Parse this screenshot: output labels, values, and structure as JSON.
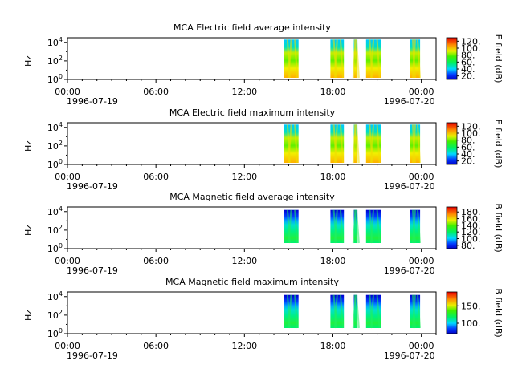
{
  "time_ticks": [
    "00:00",
    "06:00",
    "12:00",
    "18:00",
    "00:00"
  ],
  "chart_data": [
    {
      "type": "heatmap",
      "title": "MCA  Electric field average intensity",
      "ylabel": "Hz",
      "ytick_labels": [
        "10^0",
        "10^2",
        "10^4"
      ],
      "ylim": [
        1,
        31623
      ],
      "yscale": "log",
      "x_start": "1996-07-19 00:00",
      "x_end": "1996-07-20 01:00",
      "date_labels": {
        "start": "1996-07-19",
        "end": "1996-07-20"
      },
      "colorbar": {
        "label": "E field (dB)",
        "tick_labels": [
          "20.",
          "40.",
          "60.",
          "80.",
          "100.",
          "120."
        ],
        "ticks": [
          20,
          40,
          60,
          80,
          100,
          120
        ],
        "range": [
          10,
          130
        ]
      },
      "data_segments": [
        [
          "14:40",
          "15:40"
        ],
        [
          "17:50",
          "18:45"
        ],
        [
          "19:25",
          "19:40"
        ],
        [
          "20:15",
          "21:15"
        ],
        [
          "23:15",
          "23:55"
        ]
      ]
    },
    {
      "type": "heatmap",
      "title": "MCA  Electric field maximum intensity",
      "ylabel": "Hz",
      "ytick_labels": [
        "10^0",
        "10^2",
        "10^4"
      ],
      "ylim": [
        1,
        31623
      ],
      "yscale": "log",
      "x_start": "1996-07-19 00:00",
      "x_end": "1996-07-20 01:00",
      "date_labels": {
        "start": "1996-07-19",
        "end": "1996-07-20"
      },
      "colorbar": {
        "label": "E field (dB)",
        "tick_labels": [
          "20.",
          "40.",
          "60.",
          "80.",
          "100.",
          "120."
        ],
        "ticks": [
          20,
          40,
          60,
          80,
          100,
          120
        ],
        "range": [
          10,
          130
        ]
      },
      "data_segments": [
        [
          "14:40",
          "15:40"
        ],
        [
          "17:50",
          "18:45"
        ],
        [
          "19:25",
          "19:40"
        ],
        [
          "20:15",
          "21:15"
        ],
        [
          "23:15",
          "23:55"
        ]
      ]
    },
    {
      "type": "heatmap",
      "title": "MCA  Magnetic field average intensity",
      "ylabel": "Hz",
      "ytick_labels": [
        "10^0",
        "10^2",
        "10^4"
      ],
      "ylim": [
        1,
        31623
      ],
      "yscale": "log",
      "x_start": "1996-07-19 00:00",
      "x_end": "1996-07-20 01:00",
      "date_labels": {
        "start": "1996-07-19",
        "end": "1996-07-20"
      },
      "colorbar": {
        "label": "B field (dB)",
        "tick_labels": [
          "80.",
          "100.",
          "120.",
          "140.",
          "160.",
          "180."
        ],
        "ticks": [
          80,
          100,
          120,
          140,
          160,
          180
        ],
        "range": [
          70,
          195
        ]
      },
      "data_segments": [
        [
          "14:40",
          "15:40"
        ],
        [
          "17:50",
          "18:45"
        ],
        [
          "19:25",
          "19:40"
        ],
        [
          "20:15",
          "21:15"
        ],
        [
          "23:15",
          "23:55"
        ]
      ]
    },
    {
      "type": "heatmap",
      "title": "MCA  Magnetic field maximum intensity",
      "ylabel": "Hz",
      "ytick_labels": [
        "10^0",
        "10^2",
        "10^4"
      ],
      "ylim": [
        1,
        31623
      ],
      "yscale": "log",
      "x_start": "1996-07-19 00:00",
      "x_end": "1996-07-20 01:00",
      "date_labels": {
        "start": "1996-07-19",
        "end": "1996-07-20"
      },
      "colorbar": {
        "label": "B field (dB)",
        "tick_labels": [
          "100.",
          "150."
        ],
        "ticks": [
          100,
          150
        ],
        "range": [
          70,
          190
        ]
      },
      "data_segments": [
        [
          "14:40",
          "15:40"
        ],
        [
          "17:50",
          "18:45"
        ],
        [
          "19:25",
          "19:40"
        ],
        [
          "20:15",
          "21:15"
        ],
        [
          "23:15",
          "23:55"
        ]
      ]
    }
  ]
}
